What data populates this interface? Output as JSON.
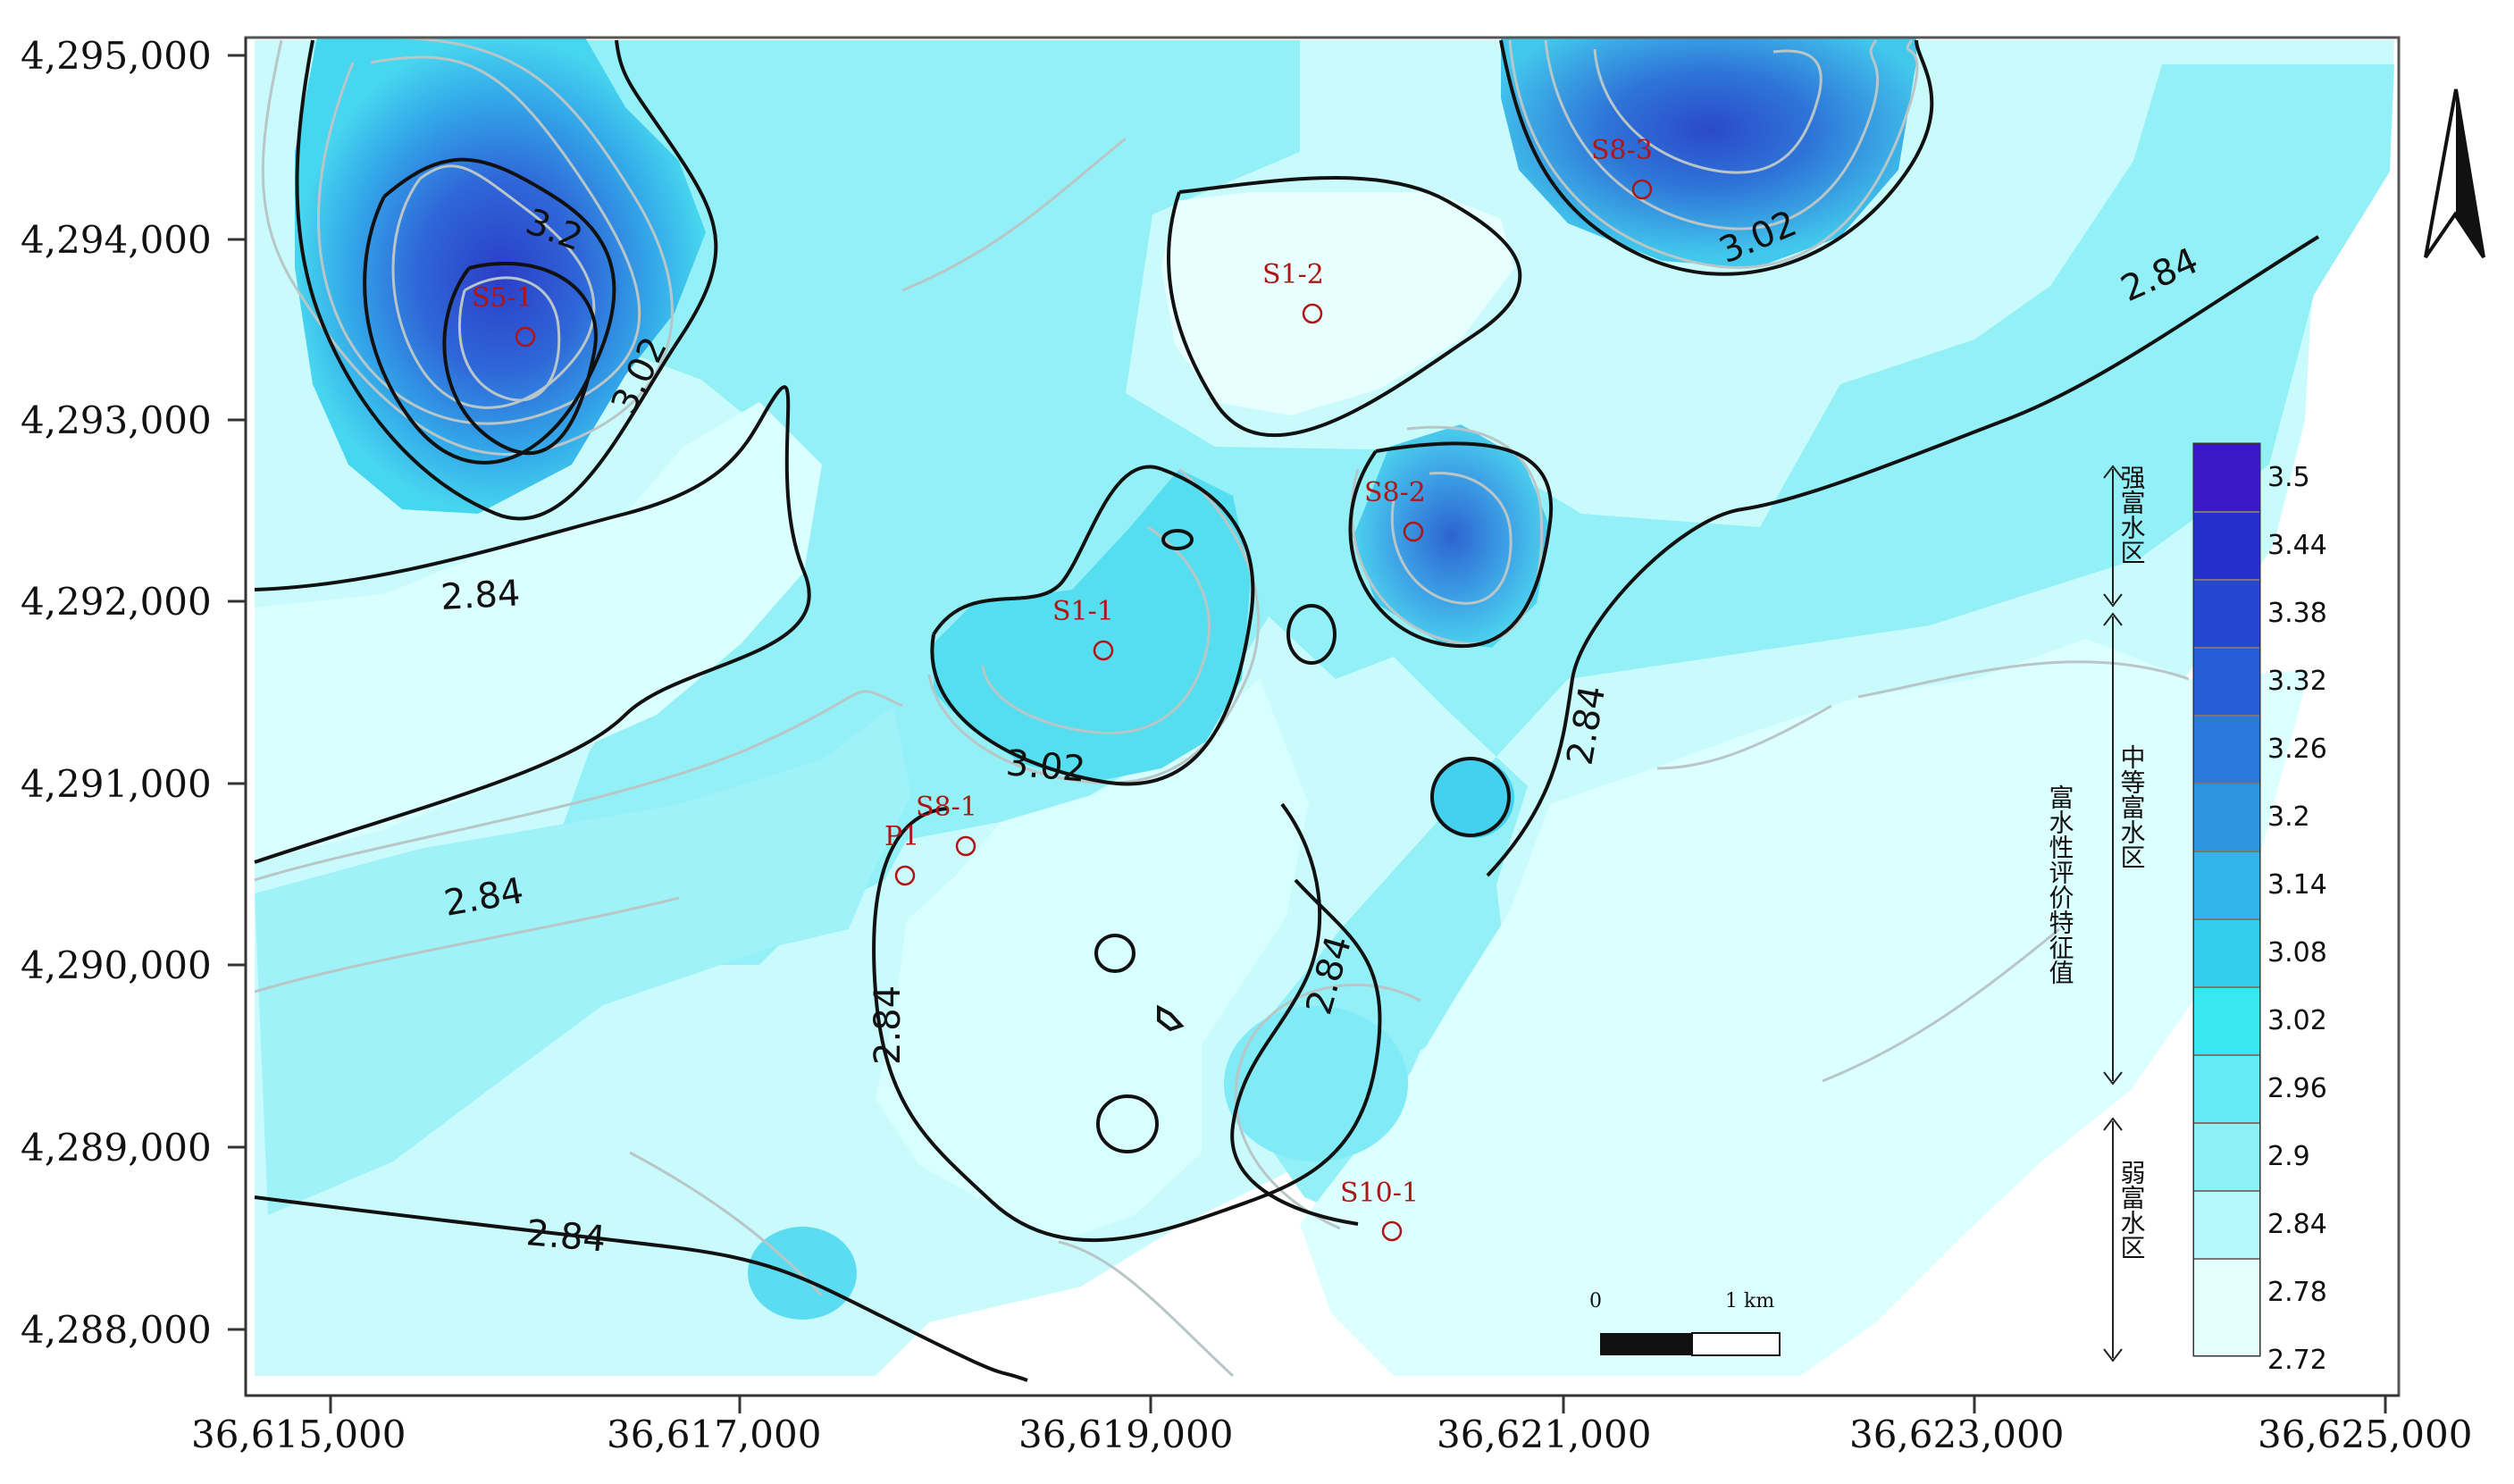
{
  "map": {
    "x_ticks": [
      "36,615,000",
      "36,617,000",
      "36,619,000",
      "36,621,000",
      "36,623,000",
      "36,625,000"
    ],
    "y_ticks": [
      "4,295,000",
      "4,294,000",
      "4,293,000",
      "4,292,000",
      "4,291,000",
      "4,290,000",
      "4,289,000",
      "4,288,000"
    ],
    "contour_labels": [
      "3.2",
      "3.02",
      "3.02",
      "3.02",
      "2.84",
      "2.84",
      "2.84",
      "2.84",
      "2.84",
      "2.84",
      "2.84"
    ],
    "stations": [
      "S5-1",
      "S8-3",
      "S1-2",
      "S8-2",
      "S1-1",
      "S8-1",
      "P1",
      "S10-1"
    ],
    "legend": {
      "values": [
        "3.5",
        "3.44",
        "3.38",
        "3.32",
        "3.26",
        "3.2",
        "3.14",
        "3.08",
        "3.02",
        "2.96",
        "2.9",
        "2.84",
        "2.78",
        "2.72"
      ],
      "zone_strong": "强富水区",
      "zone_medium": "中等富水区",
      "zone_weak": "弱富水区",
      "title": "富水性评价特征值"
    },
    "scale": {
      "zero": "0",
      "distance": "1 km"
    },
    "colors": {
      "deep": "#1f34c7",
      "medium": "#48d7ee",
      "light": "#d7ffff",
      "station": "#b01515"
    }
  }
}
